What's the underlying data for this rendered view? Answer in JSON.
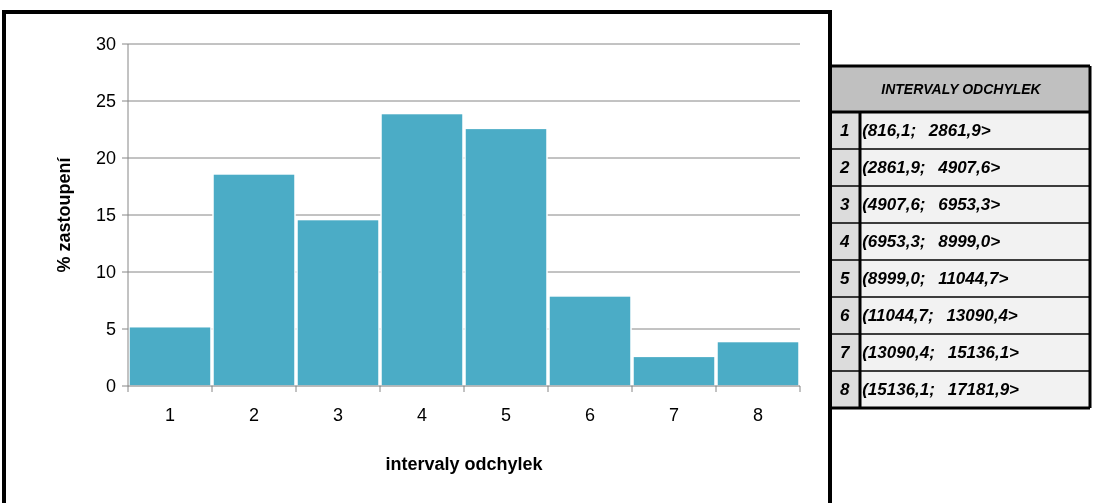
{
  "chart_data": [
    {
      "type": "bar",
      "xlabel": "intervaly odchylek",
      "ylabel": "% zastoupení",
      "categories": [
        "1",
        "2",
        "3",
        "4",
        "5",
        "6",
        "7",
        "8"
      ],
      "values": [
        5.2,
        18.6,
        14.6,
        23.9,
        22.6,
        7.9,
        2.6,
        3.9
      ],
      "color": "#4bacc6",
      "ylim": [
        0,
        30
      ],
      "yticks": [
        0,
        5,
        10,
        15,
        20,
        25,
        30
      ],
      "grid": "y"
    },
    {
      "type": "other",
      "title": "INTERVALY ODCHYLEK",
      "annotations": [
        "1 (816,1; 2861,9>",
        "2 (2861,9; 4907,6>",
        "3 (4907,6; 6953,3>",
        "4 (6953,3; 8999,0>",
        "5 (8999,0; 11044,7>",
        "6 (11044,7; 13090,4>",
        "7 (13090,4; 15136,1>",
        "8 (15136,1; 17181,9>"
      ]
    }
  ]
}
